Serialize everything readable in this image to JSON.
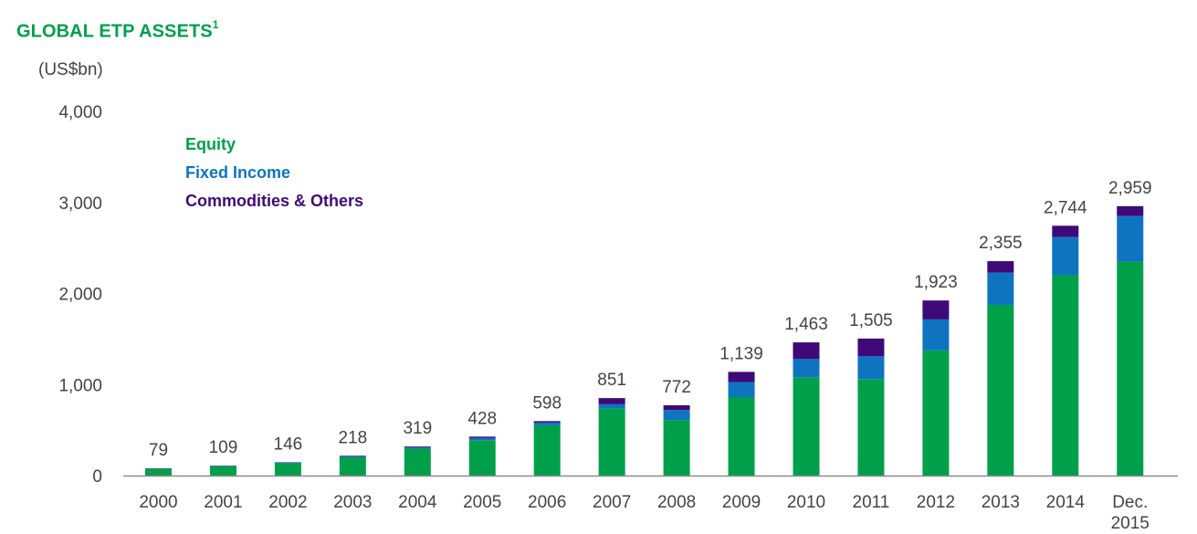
{
  "title": {
    "main": "GLOBAL ETP ASSETS",
    "footnote": "1"
  },
  "unit": "(US$bn)",
  "colors": {
    "equity": "#00A04A",
    "fixed_income": "#0E74C0",
    "commodities": "#3F0A78",
    "title": "#00A04A",
    "text": "#444444"
  },
  "chart_data": {
    "type": "bar",
    "stacked": true,
    "categories": [
      "2000",
      "2001",
      "2002",
      "2003",
      "2004",
      "2005",
      "2006",
      "2007",
      "2008",
      "2009",
      "2010",
      "2011",
      "2012",
      "2013",
      "2014",
      "Dec. 2015"
    ],
    "series": [
      {
        "name": "Equity",
        "values": [
          74,
          102,
          136,
          201,
          296,
          388,
          552,
          738,
          610,
          862,
          1080,
          1060,
          1375,
          1875,
          2200,
          2350
        ]
      },
      {
        "name": "Fixed Income",
        "values": [
          0,
          2,
          5,
          10,
          14,
          25,
          30,
          45,
          110,
          165,
          200,
          250,
          340,
          355,
          420,
          500
        ]
      },
      {
        "name": "Commodities & Others",
        "values": [
          5,
          5,
          5,
          7,
          9,
          15,
          16,
          68,
          52,
          112,
          183,
          195,
          208,
          125,
          124,
          109
        ]
      }
    ],
    "totals": [
      "79",
      "109",
      "146",
      "218",
      "319",
      "428",
      "598",
      "851",
      "772",
      "1,139",
      "1,463",
      "1,505",
      "1,923",
      "2,355",
      "2,744",
      "2,959"
    ],
    "y_ticks": [
      "0",
      "1,000",
      "2,000",
      "3,000",
      "4,000"
    ],
    "y_tick_values": [
      0,
      1000,
      2000,
      3000,
      4000
    ],
    "ylim": [
      0,
      4000
    ],
    "legend_position": "top-left",
    "grid": false
  }
}
